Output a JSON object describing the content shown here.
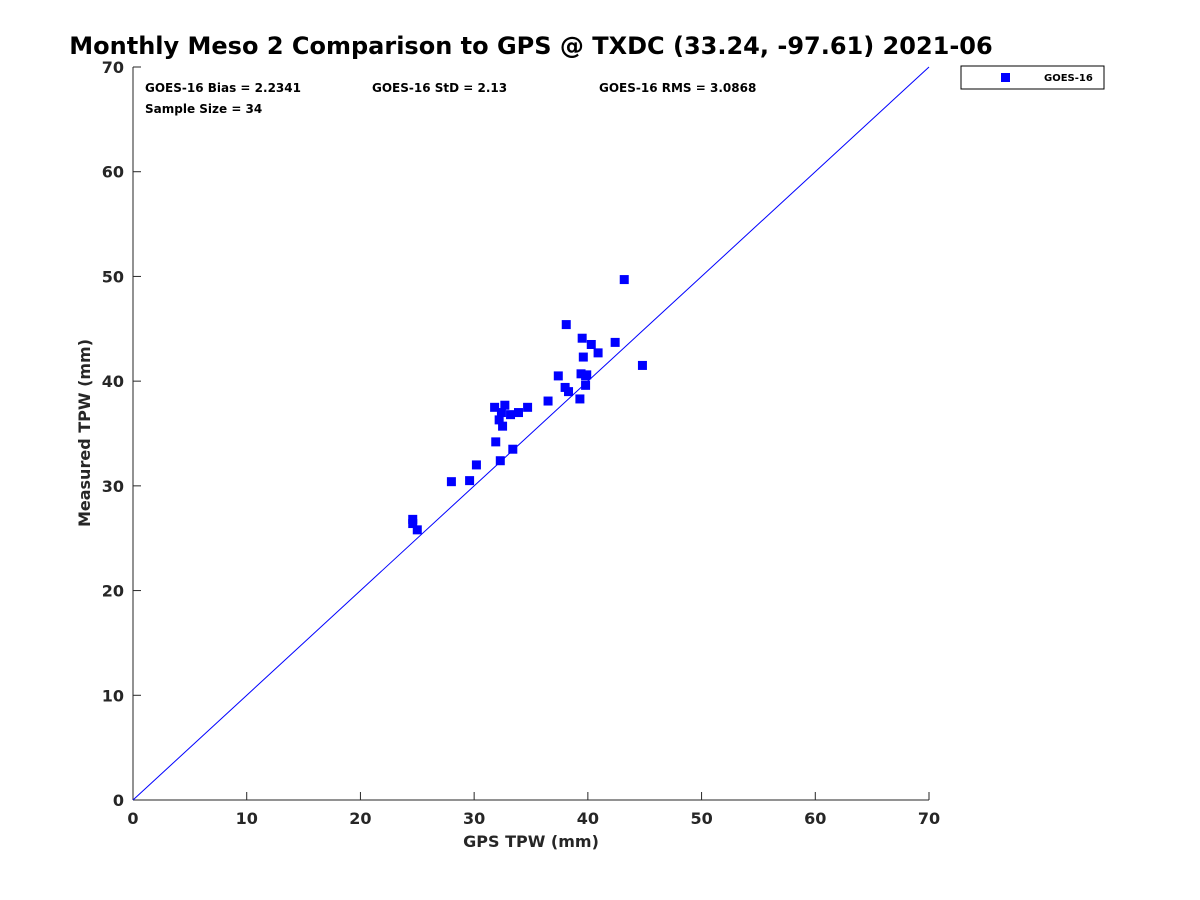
{
  "chart_data": {
    "type": "scatter",
    "title": "Monthly Meso 2 Comparison to GPS @ TXDC (33.24, -97.61) 2021-06",
    "xlabel": "GPS TPW (mm)",
    "ylabel": "Measured TPW (mm)",
    "xlim": [
      0,
      70
    ],
    "ylim": [
      0,
      70
    ],
    "xticks": [
      0,
      10,
      20,
      30,
      40,
      50,
      60,
      70
    ],
    "yticks": [
      0,
      10,
      20,
      30,
      40,
      50,
      60,
      70
    ],
    "grid": false,
    "legend_position": "outside-top-right",
    "reference_line": {
      "x": [
        0,
        70
      ],
      "y": [
        0,
        70
      ],
      "color": "#0000ff"
    },
    "annotations": [
      "GOES-16 Bias = 2.2341",
      "GOES-16 StD = 2.13",
      "GOES-16 RMS = 3.0868",
      "Sample Size = 34"
    ],
    "series": [
      {
        "name": "GOES-16",
        "color": "#0000ff",
        "marker": "square",
        "points": [
          [
            24.6,
            26.8
          ],
          [
            24.6,
            26.4
          ],
          [
            25.0,
            25.8
          ],
          [
            28.0,
            30.4
          ],
          [
            29.6,
            30.5
          ],
          [
            30.2,
            32.0
          ],
          [
            31.8,
            37.5
          ],
          [
            31.9,
            34.2
          ],
          [
            32.2,
            36.3
          ],
          [
            32.3,
            32.4
          ],
          [
            32.4,
            37.0
          ],
          [
            32.5,
            35.7
          ],
          [
            32.7,
            37.7
          ],
          [
            33.2,
            36.8
          ],
          [
            33.4,
            33.5
          ],
          [
            33.9,
            37.0
          ],
          [
            34.7,
            37.5
          ],
          [
            36.5,
            38.1
          ],
          [
            37.4,
            40.5
          ],
          [
            38.0,
            39.4
          ],
          [
            38.1,
            45.4
          ],
          [
            38.3,
            39.0
          ],
          [
            39.3,
            38.3
          ],
          [
            39.4,
            40.7
          ],
          [
            39.5,
            44.1
          ],
          [
            39.6,
            42.3
          ],
          [
            39.8,
            40.5
          ],
          [
            39.8,
            39.6
          ],
          [
            40.3,
            43.5
          ],
          [
            40.9,
            42.7
          ],
          [
            42.4,
            43.7
          ],
          [
            43.2,
            49.7
          ],
          [
            44.8,
            41.5
          ],
          [
            39.9,
            40.6
          ]
        ]
      }
    ]
  }
}
